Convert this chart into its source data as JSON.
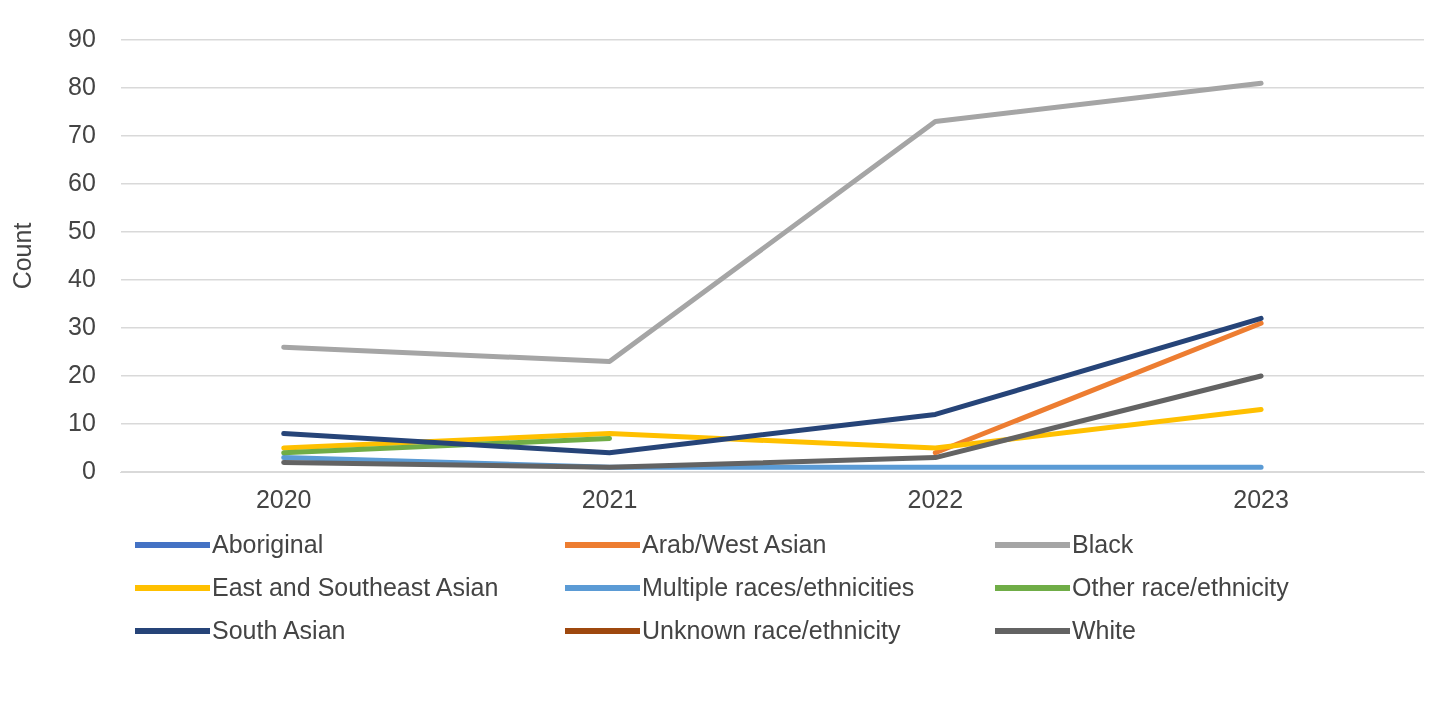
{
  "chart_data": {
    "type": "line",
    "ylabel": "Count",
    "categories": [
      "2020",
      "2021",
      "2022",
      "2023"
    ],
    "ylim": [
      0,
      90
    ],
    "yticks": [
      0,
      10,
      20,
      30,
      40,
      50,
      60,
      70,
      80,
      90
    ],
    "grid": "y",
    "legend": "bottom",
    "marker": "none",
    "line_style": "solid",
    "series": [
      {
        "name": "Aboriginal",
        "color": "#4472c4",
        "values": [
          null,
          null,
          null,
          null
        ]
      },
      {
        "name": "Arab/West Asian",
        "color": "#ed7d31",
        "values": [
          null,
          null,
          4,
          31
        ]
      },
      {
        "name": "Black",
        "color": "#a5a5a5",
        "values": [
          26,
          23,
          73,
          81
        ]
      },
      {
        "name": "East and Southeast Asian",
        "color": "#ffc000",
        "values": [
          5,
          8,
          5,
          13
        ]
      },
      {
        "name": "Multiple races/ethnicities",
        "color": "#5b9bd5",
        "values": [
          3,
          1,
          1,
          1
        ]
      },
      {
        "name": "Other race/ethnicity",
        "color": "#70ad47",
        "values": [
          4,
          7,
          null,
          null
        ]
      },
      {
        "name": "South Asian",
        "color": "#264478",
        "values": [
          8,
          4,
          12,
          32
        ]
      },
      {
        "name": "Unknown race/ethnicity",
        "color": "#9e480e",
        "values": [
          null,
          null,
          null,
          null
        ]
      },
      {
        "name": "White",
        "color": "#636363",
        "values": [
          2,
          1,
          3,
          20
        ]
      }
    ]
  }
}
